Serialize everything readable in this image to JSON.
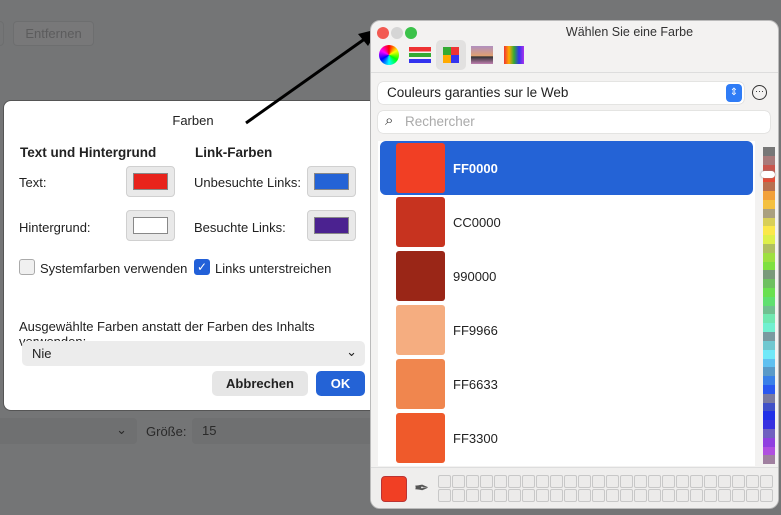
{
  "background": {
    "remove_button": "Entfernen",
    "size_label": "Größe:",
    "size_value": "15"
  },
  "colors_dialog": {
    "title": "Farben",
    "text_bg_heading": "Text und Hintergrund",
    "link_heading": "Link-Farben",
    "text_label": "Text:",
    "text_color": "#e8231c",
    "bg_label": "Hintergrund:",
    "bg_color": "#ffffff",
    "unvisited_label": "Unbesuchte Links:",
    "unvisited_color": "#2463d6",
    "visited_label": "Besuchte Links:",
    "visited_color": "#4b2290",
    "system_colors_label": "Systemfarben verwenden",
    "system_colors_checked": false,
    "underline_label": "Links unterstreichen",
    "underline_checked": true,
    "override_label": "Ausgewählte Farben anstatt der Farben des Inhalts verwenden:",
    "override_value": "Nie",
    "cancel": "Abbrechen",
    "ok": "OK"
  },
  "picker": {
    "title": "Wählen Sie eine Farbe",
    "toolbar": [
      "color-wheel-icon",
      "sliders-icon",
      "palettes-icon",
      "image-palettes-icon",
      "pencils-icon"
    ],
    "palette": "Couleurs garanties sur le Web",
    "search_placeholder": "Rechercher",
    "colors": [
      {
        "hex": "FF0000",
        "color": "#f13f24",
        "selected": true
      },
      {
        "hex": "CC0000",
        "color": "#c7331f"
      },
      {
        "hex": "990000",
        "color": "#9a2617"
      },
      {
        "hex": "FF9966",
        "color": "#f5ad80"
      },
      {
        "hex": "FF6633",
        "color": "#f0864e"
      },
      {
        "hex": "FF3300",
        "color": "#ef5a2b"
      }
    ],
    "current_color": "#f13f24",
    "strip": [
      "#777",
      "#a87a7a",
      "#c9564d",
      "#e74a33",
      "#b87050",
      "#f2a03a",
      "#f4c040",
      "#aaa080",
      "#d8cf58",
      "#fbe84a",
      "#def04a",
      "#b0c060",
      "#9ee040",
      "#7ee040",
      "#7a9a7a",
      "#6ec060",
      "#6ae050",
      "#60e070",
      "#70c090",
      "#70e8b0",
      "#70f0d0",
      "#7a9aa0",
      "#70c8d0",
      "#70e8f8",
      "#60c0f0",
      "#5a9ac8",
      "#3a80e8",
      "#2a58f0",
      "#7a7aa0",
      "#4050c8",
      "#2030e8",
      "#3830e0",
      "#7060c0",
      "#9040e0",
      "#b050e0",
      "#a080a0"
    ]
  }
}
